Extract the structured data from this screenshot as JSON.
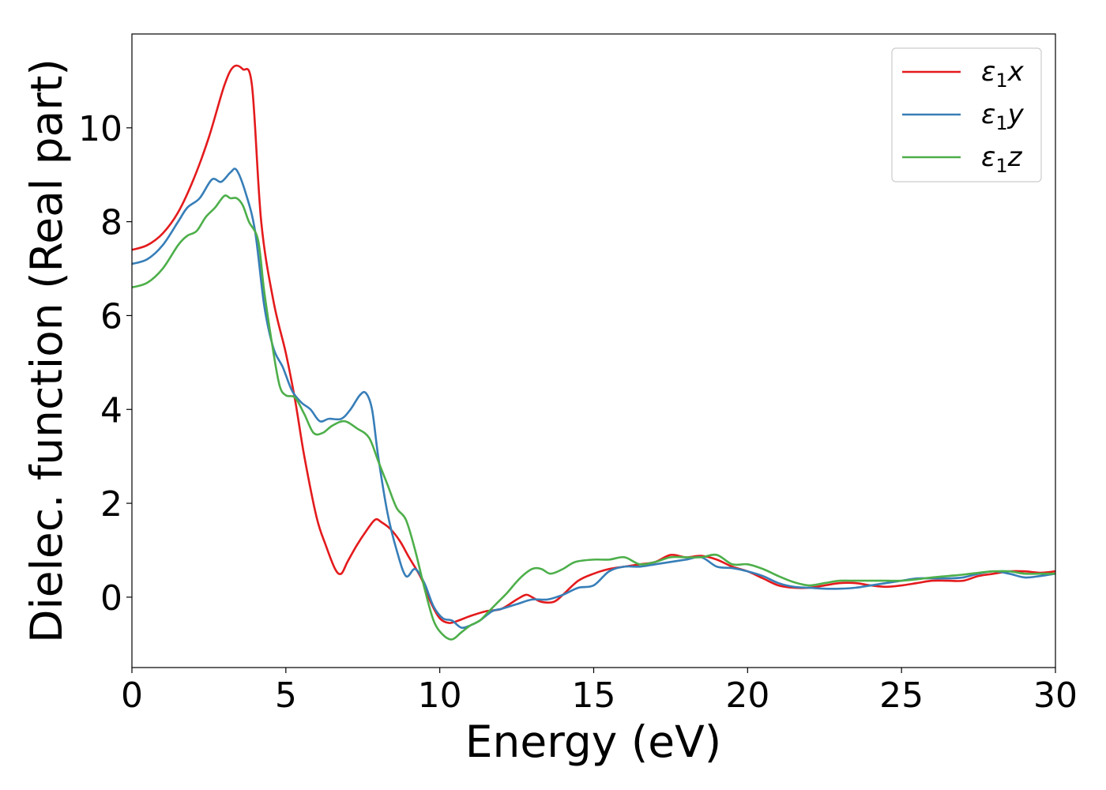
{
  "chart_data": {
    "type": "line",
    "xlabel": "Energy (eV)",
    "ylabel": "Dielec. function (Real part)",
    "xlim": [
      0,
      30
    ],
    "ylim": [
      -1.5,
      12
    ],
    "xticks": [
      0,
      5,
      10,
      15,
      20,
      25,
      30
    ],
    "xtick_labels": [
      "0",
      "5",
      "10",
      "15",
      "20",
      "25",
      "30"
    ],
    "yticks": [
      0,
      2,
      4,
      6,
      8,
      10
    ],
    "ytick_labels": [
      "0",
      "2",
      "4",
      "6",
      "8",
      "10"
    ],
    "grid": false,
    "legend_position": "top-right",
    "series": [
      {
        "name": "ε1x",
        "legend_symbol": "ε",
        "legend_sub": "1",
        "legend_suffix": "x",
        "color": "#e41a1c",
        "x": [
          0,
          0.5,
          1,
          1.5,
          2,
          2.5,
          3,
          3.3,
          3.6,
          3.9,
          4.2,
          4.6,
          5,
          5.3,
          5.6,
          6,
          6.3,
          6.6,
          6.8,
          7,
          7.3,
          7.6,
          7.9,
          8.1,
          8.4,
          8.7,
          9,
          9.4,
          9.7,
          10,
          10.3,
          10.6,
          11,
          11.5,
          12,
          12.5,
          12.8,
          13,
          13.3,
          13.7,
          14,
          14.5,
          15,
          15.5,
          16,
          16.5,
          17,
          17.5,
          18,
          18.5,
          19,
          19.5,
          20,
          20.5,
          21,
          21.5,
          22,
          22.5,
          23,
          23.5,
          24,
          24.5,
          25,
          25.5,
          26,
          26.5,
          27,
          27.5,
          28,
          28.5,
          29,
          29.5,
          30
        ],
        "y": [
          7.4,
          7.5,
          7.75,
          8.2,
          8.9,
          9.8,
          10.9,
          11.3,
          11.25,
          10.9,
          8.0,
          6.3,
          5.2,
          4.2,
          3.0,
          1.7,
          1.1,
          0.6,
          0.5,
          0.75,
          1.1,
          1.4,
          1.65,
          1.6,
          1.45,
          1.2,
          0.85,
          0.4,
          -0.1,
          -0.45,
          -0.55,
          -0.5,
          -0.4,
          -0.3,
          -0.25,
          -0.05,
          0.05,
          0.0,
          -0.1,
          -0.1,
          0.05,
          0.35,
          0.5,
          0.6,
          0.65,
          0.7,
          0.75,
          0.9,
          0.85,
          0.88,
          0.8,
          0.65,
          0.55,
          0.4,
          0.25,
          0.2,
          0.2,
          0.25,
          0.3,
          0.3,
          0.25,
          0.22,
          0.25,
          0.3,
          0.35,
          0.35,
          0.35,
          0.45,
          0.5,
          0.55,
          0.55,
          0.52,
          0.55
        ]
      },
      {
        "name": "ε1y",
        "legend_symbol": "ε",
        "legend_sub": "1",
        "legend_suffix": "y",
        "color": "#377eb8",
        "x": [
          0,
          0.5,
          1,
          1.5,
          1.8,
          2.2,
          2.6,
          2.9,
          3.2,
          3.4,
          3.7,
          4,
          4.3,
          4.6,
          4.9,
          5.2,
          5.5,
          5.8,
          6.1,
          6.4,
          6.8,
          7.1,
          7.4,
          7.6,
          7.8,
          8,
          8.3,
          8.6,
          8.9,
          9.2,
          9.5,
          9.8,
          10.1,
          10.4,
          10.7,
          11,
          11.3,
          11.7,
          12,
          12.5,
          13,
          13.5,
          14,
          14.5,
          15,
          15.5,
          16,
          16.5,
          17,
          17.5,
          18,
          18.5,
          19,
          19.5,
          20,
          20.5,
          21,
          21.5,
          22,
          22.5,
          23,
          23.5,
          24,
          24.5,
          25,
          25.5,
          26,
          26.5,
          27,
          27.5,
          28,
          28.5,
          29,
          29.5,
          30
        ],
        "y": [
          7.1,
          7.2,
          7.5,
          8.0,
          8.3,
          8.5,
          8.9,
          8.85,
          9.05,
          9.1,
          8.6,
          7.8,
          6.2,
          5.3,
          4.9,
          4.4,
          4.15,
          4.0,
          3.75,
          3.8,
          3.8,
          4.0,
          4.3,
          4.35,
          4.0,
          3.0,
          1.8,
          1.0,
          0.45,
          0.6,
          0.3,
          -0.2,
          -0.45,
          -0.5,
          -0.65,
          -0.6,
          -0.5,
          -0.3,
          -0.25,
          -0.15,
          -0.05,
          -0.05,
          0.05,
          0.2,
          0.25,
          0.55,
          0.65,
          0.65,
          0.7,
          0.75,
          0.8,
          0.85,
          0.65,
          0.62,
          0.55,
          0.45,
          0.3,
          0.22,
          0.2,
          0.18,
          0.18,
          0.2,
          0.25,
          0.3,
          0.35,
          0.4,
          0.4,
          0.4,
          0.42,
          0.5,
          0.55,
          0.5,
          0.42,
          0.45,
          0.5
        ]
      },
      {
        "name": "ε1z",
        "legend_symbol": "ε",
        "legend_sub": "1",
        "legend_suffix": "z",
        "color": "#4daf4a",
        "x": [
          0,
          0.5,
          1,
          1.5,
          1.8,
          2.1,
          2.4,
          2.7,
          3,
          3.2,
          3.4,
          3.6,
          3.8,
          4.1,
          4.3,
          4.6,
          4.8,
          5,
          5.3,
          5.6,
          5.9,
          6.2,
          6.5,
          6.9,
          7.3,
          7.7,
          8,
          8.3,
          8.6,
          8.9,
          9.2,
          9.5,
          9.8,
          10.1,
          10.4,
          10.7,
          11,
          11.3,
          11.6,
          11.9,
          12.2,
          12.6,
          13,
          13.3,
          13.6,
          14,
          14.4,
          15,
          15.5,
          16,
          16.5,
          17,
          17.5,
          18,
          18.5,
          19,
          19.5,
          20,
          20.5,
          21,
          21.5,
          22,
          22.5,
          23,
          23.5,
          24,
          24.5,
          25,
          25.5,
          26,
          26.5,
          27,
          27.5,
          28,
          28.5,
          29,
          29.5,
          30
        ],
        "y": [
          6.6,
          6.7,
          7.0,
          7.5,
          7.7,
          7.8,
          8.1,
          8.3,
          8.55,
          8.5,
          8.5,
          8.35,
          8.0,
          7.6,
          6.5,
          5.2,
          4.5,
          4.3,
          4.25,
          3.9,
          3.5,
          3.5,
          3.65,
          3.75,
          3.6,
          3.4,
          2.9,
          2.4,
          1.9,
          1.65,
          1.0,
          0.2,
          -0.5,
          -0.8,
          -0.9,
          -0.75,
          -0.6,
          -0.5,
          -0.3,
          -0.1,
          0.1,
          0.4,
          0.6,
          0.6,
          0.5,
          0.6,
          0.75,
          0.8,
          0.8,
          0.85,
          0.7,
          0.75,
          0.85,
          0.85,
          0.85,
          0.9,
          0.7,
          0.7,
          0.6,
          0.45,
          0.32,
          0.25,
          0.3,
          0.35,
          0.35,
          0.35,
          0.35,
          0.35,
          0.38,
          0.42,
          0.45,
          0.48,
          0.52,
          0.55,
          0.55,
          0.5,
          0.5,
          0.5
        ]
      }
    ]
  }
}
